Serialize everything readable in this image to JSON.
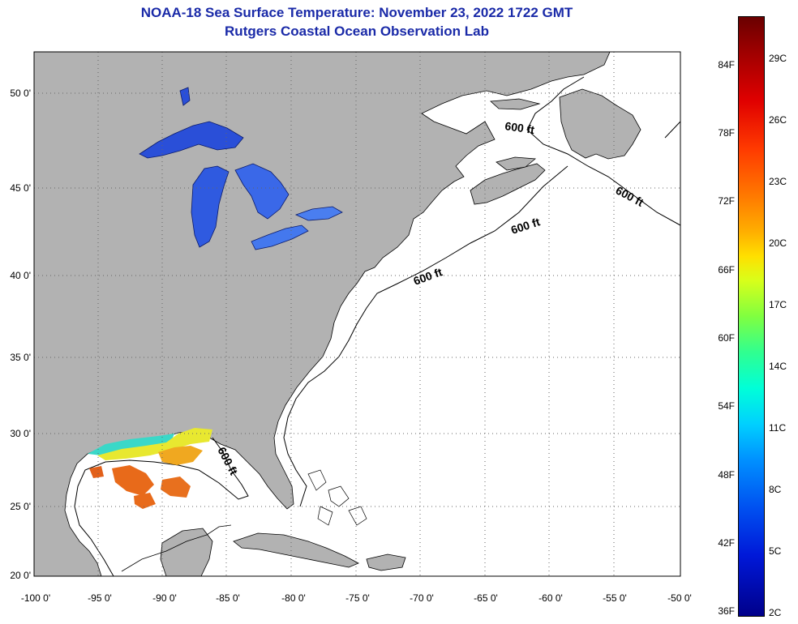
{
  "header": {
    "title": "NOAA-18 Sea Surface Temperature:  November 23, 2022 1722 GMT",
    "subtitle": "Rutgers Coastal Ocean Observation Lab"
  },
  "map": {
    "lat_labels": [
      "50 0'",
      "45 0'",
      "40 0'",
      "35 0'",
      "30 0'",
      "25 0'",
      "20 0'"
    ],
    "lon_labels": [
      "-100 0'",
      "-95 0'",
      "-90 0'",
      "-85 0'",
      "-80 0'",
      "-75 0'",
      "-70 0'",
      "-65 0'",
      "-60 0'",
      "-55 0'",
      "-50 0'"
    ],
    "contour_label": "600 ft",
    "colors": {
      "land": "#b2b2b2",
      "ocean": "#ffffff",
      "grid": "#666666"
    }
  },
  "colorbar": {
    "fahrenheit": [
      "84F",
      "78F",
      "72F",
      "66F",
      "60F",
      "54F",
      "48F",
      "42F",
      "36F"
    ],
    "celsius": [
      "29C",
      "26C",
      "23C",
      "20C",
      "17C",
      "14C",
      "11C",
      "8C",
      "5C",
      "2C"
    ]
  }
}
